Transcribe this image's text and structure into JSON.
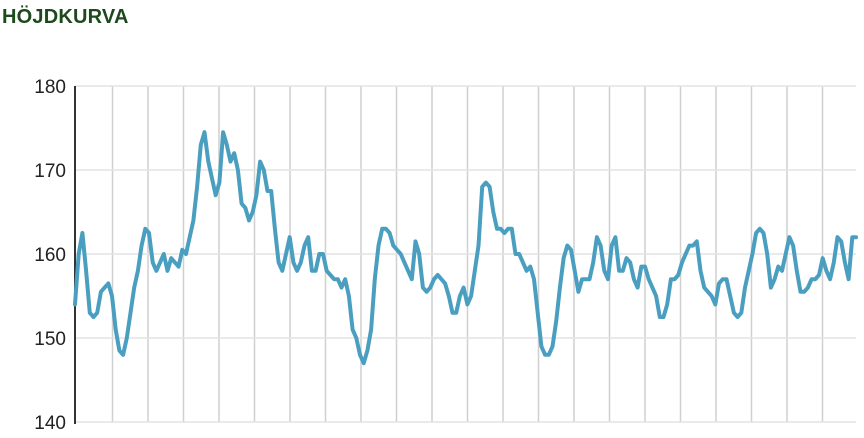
{
  "title": "HÖJDKURVA",
  "colors": {
    "title": "#1d4a1d",
    "line": "#4a9fc0",
    "grid_vertical": "#cfcfcf",
    "grid_horizontal": "#e4e4e4",
    "axis": "#333333"
  },
  "chart_data": {
    "type": "line",
    "title": "HÖJDKURVA",
    "xlabel": "",
    "ylabel": "",
    "ylim": [
      140,
      180
    ],
    "yticks": [
      140,
      150,
      160,
      170,
      180
    ],
    "grid": true,
    "vertical_gridline_count": 22,
    "series": [
      {
        "values": [
          154,
          160,
          162.5,
          158,
          153,
          152.5,
          153,
          155.5,
          156,
          156.5,
          155,
          151,
          148.5,
          148,
          150,
          153,
          156,
          158,
          161,
          163,
          162.5,
          159,
          158,
          159,
          160,
          158,
          159.5,
          159,
          158.5,
          160.5,
          160,
          162,
          164,
          168,
          173,
          174.5,
          171,
          169,
          167,
          168.5,
          174.5,
          173,
          171,
          172,
          170,
          166,
          165.5,
          164,
          165,
          167,
          171,
          170,
          167.5,
          167.5,
          163,
          159,
          158,
          160,
          162,
          159,
          158,
          159,
          161,
          162,
          158,
          158,
          160,
          160,
          158,
          157.5,
          157,
          157,
          156,
          157,
          155,
          151,
          150,
          148,
          147,
          148.5,
          151,
          157,
          161,
          163,
          163,
          162.5,
          161,
          160.5,
          160,
          159,
          158,
          157,
          161.5,
          160,
          156,
          155.5,
          156,
          157,
          157.5,
          157,
          156.5,
          155,
          153,
          153,
          155,
          156,
          154,
          155,
          158,
          161,
          168,
          168.5,
          168,
          165,
          163,
          163,
          162.5,
          163,
          163,
          160,
          160,
          159,
          158,
          158.5,
          157,
          153,
          149,
          148,
          148,
          149,
          152,
          156,
          159.5,
          161,
          160.5,
          158,
          155.5,
          157,
          157,
          157,
          159,
          162,
          161,
          158,
          157,
          161,
          162,
          158,
          158,
          159.5,
          159,
          157,
          156,
          158.5,
          158.5,
          157,
          156,
          155,
          152.5,
          152.5,
          154,
          157,
          157,
          157.5,
          159,
          160,
          161,
          161,
          161.5,
          158,
          156,
          155.5,
          155,
          154,
          156.5,
          157,
          157,
          155,
          153,
          152.5,
          153,
          156,
          158,
          160,
          162.5,
          163,
          162.5,
          160,
          156,
          157,
          158.5,
          158,
          160,
          162,
          161,
          158,
          155.5,
          155.5,
          156,
          157,
          157,
          157.5,
          159.5,
          158,
          157,
          159,
          162,
          161.5,
          159,
          157,
          162,
          162
        ]
      }
    ]
  }
}
